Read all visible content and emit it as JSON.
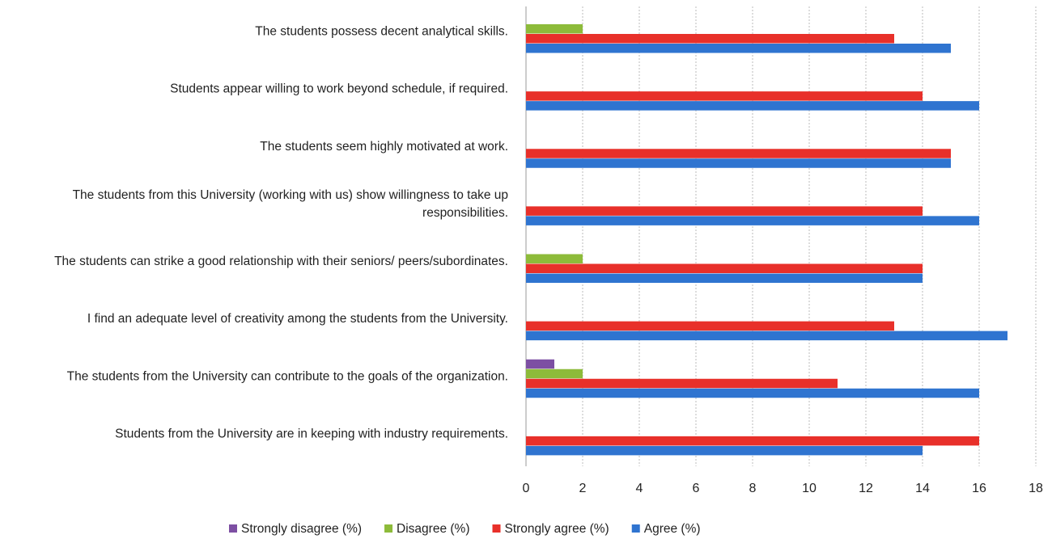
{
  "chart_data": {
    "type": "bar",
    "orientation": "horizontal",
    "categories": [
      "The students possess decent analytical skills.",
      "Students appear willing to work beyond schedule, if required.",
      "The students seem highly motivated at work.",
      "The students from this University (working with us) show willingness to take up responsibilities.",
      "The students can strike a good relationship with their seniors/ peers/subordinates.",
      "I find an adequate level of creativity among the students from the University.",
      "The students from the University can contribute to the goals of the organization.",
      "Students from the University are in keeping with industry requirements."
    ],
    "series": [
      {
        "name": "Strongly disagree (%)",
        "color": "#7d4fa3",
        "values": [
          0,
          0,
          0,
          0,
          0,
          0,
          1,
          0
        ]
      },
      {
        "name": "Disagree (%)",
        "color": "#8dbb3a",
        "values": [
          2,
          0,
          0,
          0,
          2,
          0,
          2,
          0
        ]
      },
      {
        "name": "Strongly agree (%)",
        "color": "#e8302a",
        "values": [
          13,
          14,
          15,
          14,
          14,
          13,
          11,
          16
        ]
      },
      {
        "name": "Agree (%)",
        "color": "#2f74d0",
        "values": [
          15,
          16,
          15,
          16,
          14,
          17,
          16,
          14
        ]
      }
    ],
    "xlim": [
      0,
      18
    ],
    "xticks": [
      0,
      2,
      4,
      6,
      8,
      10,
      12,
      14,
      16,
      18
    ],
    "grid": true,
    "legend": "bottom"
  }
}
